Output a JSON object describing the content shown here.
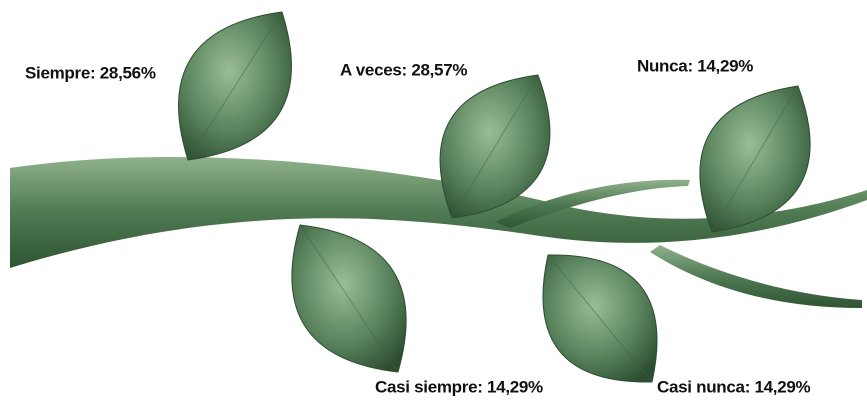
{
  "leaves": [
    {
      "label": "Siempre: 28,56%"
    },
    {
      "label": "A veces: 28,57%"
    },
    {
      "label": "Nunca: 14,29%"
    },
    {
      "label": "Casi siempre: 14,29%"
    },
    {
      "label": "Casi nunca: 14,29%"
    }
  ]
}
